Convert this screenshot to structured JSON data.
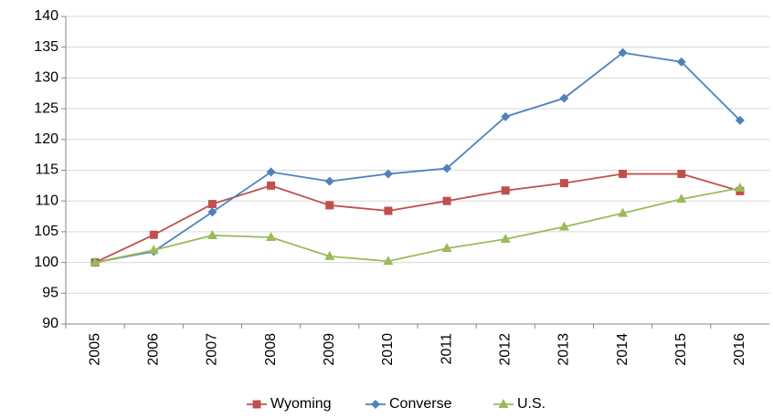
{
  "chart_data": {
    "type": "line",
    "categories": [
      "2005",
      "2006",
      "2007",
      "2008",
      "2009",
      "2010",
      "2011",
      "2012",
      "2013",
      "2014",
      "2015",
      "2016"
    ],
    "series": [
      {
        "name": "Wyoming",
        "color": "#c0504d",
        "marker": "square",
        "values": [
          100,
          104.5,
          109.5,
          112.5,
          109.3,
          108.4,
          110,
          111.7,
          112.9,
          114.4,
          114.4,
          111.6
        ]
      },
      {
        "name": "Converse",
        "color": "#4f81bd",
        "marker": "diamond",
        "values": [
          100,
          101.8,
          108.2,
          114.7,
          113.2,
          114.4,
          115.3,
          123.7,
          126.7,
          134.1,
          132.6,
          123.1
        ]
      },
      {
        "name": "U.S.",
        "color": "#9bbb59",
        "marker": "triangle",
        "values": [
          100,
          102,
          104.4,
          104.1,
          101,
          100.2,
          102.3,
          103.8,
          105.8,
          108,
          110.3,
          112.1
        ]
      }
    ],
    "ylim": [
      90,
      140
    ],
    "yticks": [
      90,
      95,
      100,
      105,
      110,
      115,
      120,
      125,
      130,
      135,
      140
    ],
    "grid": true,
    "legend": "bottom"
  }
}
